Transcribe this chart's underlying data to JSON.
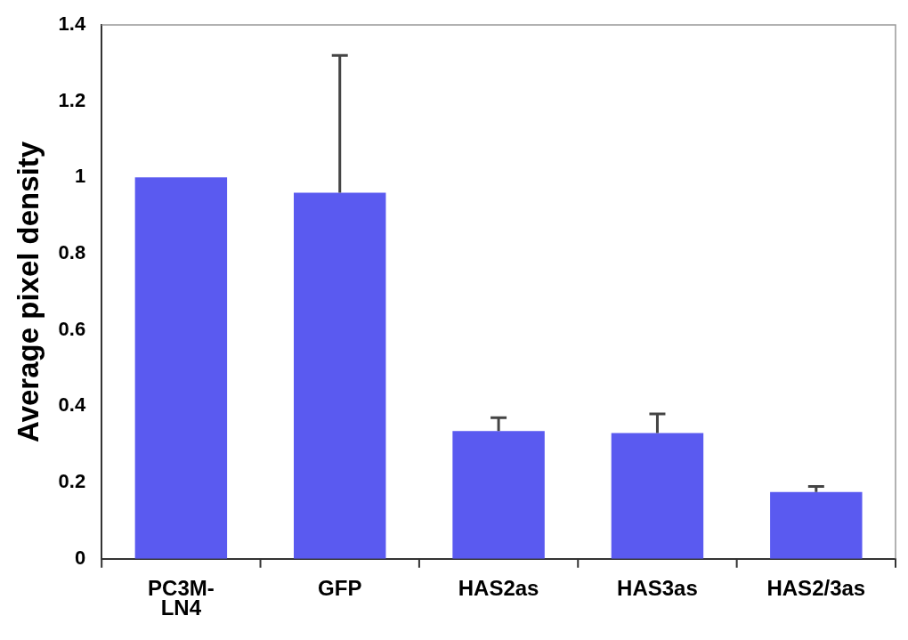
{
  "chart_data": {
    "type": "bar",
    "ylabel": "Average pixel density",
    "categories": [
      "PC3M-LN4",
      "GFP",
      "HAS2as",
      "HAS3as",
      "HAS2/3as"
    ],
    "values": [
      1.0,
      0.96,
      0.335,
      0.33,
      0.175
    ],
    "errors": [
      null,
      [
        0.96,
        1.32
      ],
      [
        0.335,
        0.37
      ],
      [
        0.33,
        0.38
      ],
      [
        0.175,
        0.19
      ]
    ],
    "color": "#5a5af0",
    "ylim": [
      0,
      1.4
    ],
    "yticks": [
      0,
      0.2,
      0.4,
      0.6,
      0.8,
      1,
      1.2,
      1.4
    ],
    "grid": false,
    "legend": false
  }
}
